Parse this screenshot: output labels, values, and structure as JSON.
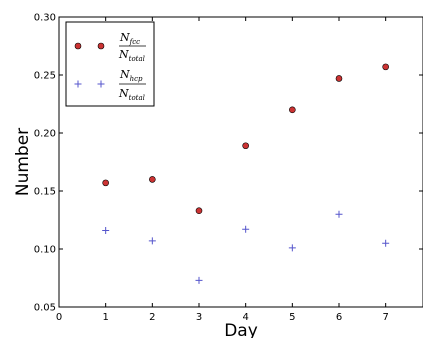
{
  "chart_data": {
    "type": "scatter",
    "xlabel": "Day",
    "ylabel": "Number",
    "xlim": [
      0,
      7.8
    ],
    "ylim": [
      0.05,
      0.3
    ],
    "x_ticks": [
      "0",
      "1",
      "2",
      "3",
      "4",
      "5",
      "6",
      "7"
    ],
    "y_ticks": [
      "0.05",
      "0.10",
      "0.15",
      "0.20",
      "0.25",
      "0.30"
    ],
    "grid": false,
    "legend_placement": "top-left",
    "series": [
      {
        "key": "fcc",
        "marker": "circle",
        "color": "#cc3333",
        "legend_numerator_base": "N",
        "legend_numerator_sub": "fcc",
        "legend_denominator_base": "N",
        "legend_denominator_sub": "total",
        "x": [
          1,
          2,
          3,
          4,
          5,
          6,
          7
        ],
        "y": [
          0.157,
          0.16,
          0.133,
          0.189,
          0.22,
          0.247,
          0.257
        ]
      },
      {
        "key": "hcp",
        "marker": "plus",
        "color": "#5555cc",
        "legend_numerator_base": "N",
        "legend_numerator_sub": "hcp",
        "legend_denominator_base": "N",
        "legend_denominator_sub": "total",
        "x": [
          1,
          2,
          3,
          4,
          5,
          6,
          7
        ],
        "y": [
          0.116,
          0.107,
          0.073,
          0.117,
          0.101,
          0.13,
          0.105
        ]
      }
    ]
  }
}
